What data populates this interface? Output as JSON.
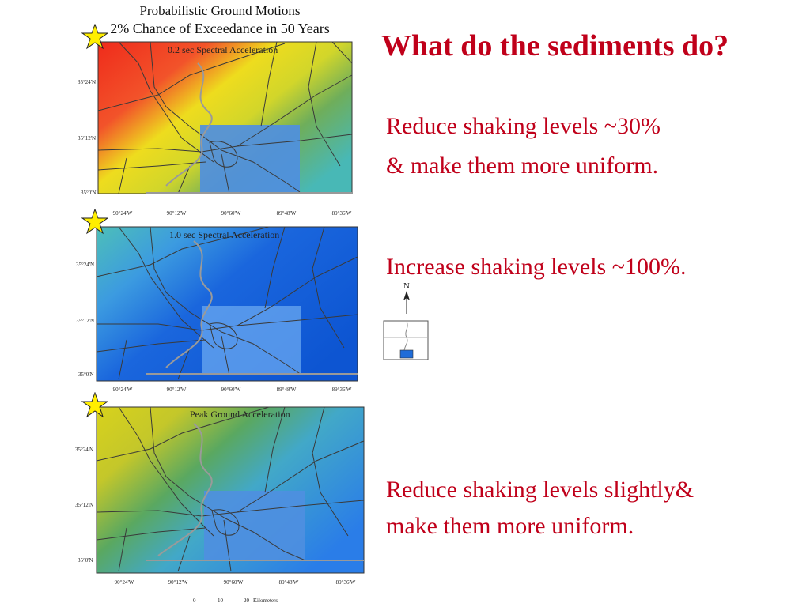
{
  "figure": {
    "title_line1": "Probabilistic Ground Motions",
    "title_line2": "2% Chance of Exceedance in 50 Years"
  },
  "panels": [
    {
      "label": "0.2 sec Spectral Acceleration",
      "description_line1": "Reduce shaking levels ~30%",
      "description_line2": "& make them more uniform."
    },
    {
      "label": "1.0 sec Spectral Acceleration",
      "description_line1": "Increase shaking levels ~100%.",
      "description_line2": ""
    },
    {
      "label": "Peak Ground Acceleration",
      "description_line1": "Reduce shaking levels slightly&",
      "description_line2": "make them more uniform."
    }
  ],
  "axes": {
    "lat_ticks": [
      "35°24'N",
      "35°12'N",
      "35°0'N"
    ],
    "lon_ticks": [
      "90°24'W",
      "90°12'W",
      "90°60'W",
      "89°48'W",
      "89°36'W"
    ]
  },
  "heading": "What do the sediments do?",
  "north_label": "N",
  "scale_bar": {
    "ticks": [
      "0",
      "10",
      "20"
    ],
    "unit": "Kilometers"
  },
  "colors": {
    "accent_text": "#c0001a",
    "star": "#ffee00"
  }
}
